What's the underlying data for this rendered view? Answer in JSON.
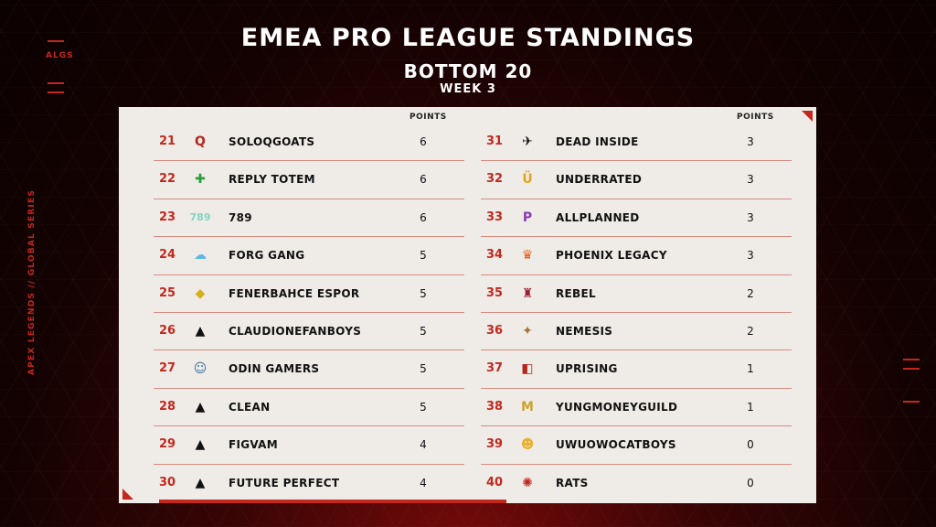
{
  "header": {
    "title": "EMEA PRO LEAGUE STANDINGS",
    "subtitle": "BOTTOM 20",
    "week": "WEEK 3"
  },
  "side": {
    "algs": "ALGS",
    "series": "APEX LEGENDS // GLOBAL SERIES"
  },
  "table": {
    "points_header": "POINTS"
  },
  "left_rows": [
    {
      "rank": "21",
      "team": "SOLOQGOATS",
      "points": "6",
      "logo": "Q",
      "icon": "soloqgoats-logo"
    },
    {
      "rank": "22",
      "team": "REPLY TOTEM",
      "points": "6",
      "logo": "✚",
      "icon": "reply-totem-logo"
    },
    {
      "rank": "23",
      "team": "789",
      "points": "6",
      "logo": "789",
      "icon": "789-logo"
    },
    {
      "rank": "24",
      "team": "FORG GANG",
      "points": "5",
      "logo": "☁",
      "icon": "forg-gang-logo"
    },
    {
      "rank": "25",
      "team": "FENERBAHCE ESPOR",
      "points": "5",
      "logo": "◆",
      "icon": "fenerbahce-logo"
    },
    {
      "rank": "26",
      "team": "CLAUDIONEFANBOYS",
      "points": "5",
      "logo": "▲",
      "icon": "apex-logo"
    },
    {
      "rank": "27",
      "team": "ODIN GAMERS",
      "points": "5",
      "logo": "☺",
      "icon": "odin-logo"
    },
    {
      "rank": "28",
      "team": "CLEAN",
      "points": "5",
      "logo": "▲",
      "icon": "apex-logo"
    },
    {
      "rank": "29",
      "team": "FIGVAM",
      "points": "4",
      "logo": "▲",
      "icon": "apex-logo"
    },
    {
      "rank": "30",
      "team": "FUTURE PERFECT",
      "points": "4",
      "logo": "▲",
      "icon": "apex-logo"
    }
  ],
  "right_rows": [
    {
      "rank": "31",
      "team": "DEAD INSIDE",
      "points": "3",
      "logo": "✈",
      "icon": "dead-inside-logo"
    },
    {
      "rank": "32",
      "team": "UNDERRATED",
      "points": "3",
      "logo": "Ü",
      "icon": "underrated-logo"
    },
    {
      "rank": "33",
      "team": "ALLPLANNED",
      "points": "3",
      "logo": "P",
      "icon": "allplanned-logo"
    },
    {
      "rank": "34",
      "team": "PHOENIX LEGACY",
      "points": "3",
      "logo": "♛",
      "icon": "phoenix-logo"
    },
    {
      "rank": "35",
      "team": "REBEL",
      "points": "2",
      "logo": "♜",
      "icon": "rebel-logo"
    },
    {
      "rank": "36",
      "team": "NEMESIS",
      "points": "2",
      "logo": "✦",
      "icon": "nemesis-logo"
    },
    {
      "rank": "37",
      "team": "UPRISING",
      "points": "1",
      "logo": "◧",
      "icon": "uprising-logo"
    },
    {
      "rank": "38",
      "team": "YUNGMONEYGUILD",
      "points": "1",
      "logo": "M",
      "icon": "yungmoney-logo"
    },
    {
      "rank": "39",
      "team": "UWUOWOCATBOYS",
      "points": "0",
      "logo": "☻",
      "icon": "catboys-logo"
    },
    {
      "rank": "40",
      "team": "RATS",
      "points": "0",
      "logo": "✺",
      "icon": "rats-logo"
    }
  ],
  "colors": {
    "accent": "#c2281e",
    "panel": "#efece8"
  }
}
